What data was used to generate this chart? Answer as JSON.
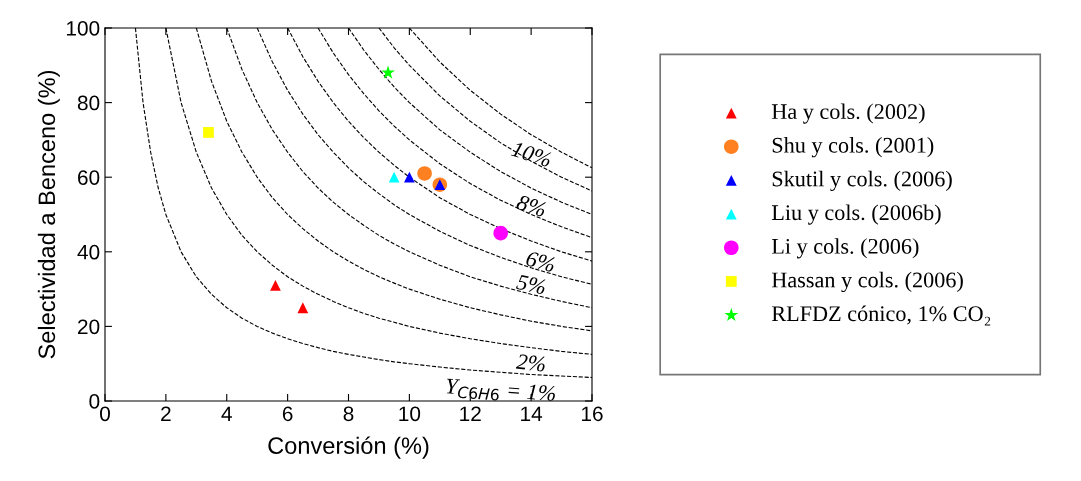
{
  "chart_data": {
    "type": "scatter",
    "xlabel": "Conversión (%)",
    "ylabel": "Selectividad a Benceno (%)",
    "xlim": [
      0,
      16
    ],
    "ylim": [
      0,
      100
    ],
    "xticks": [
      0,
      2,
      4,
      6,
      8,
      10,
      12,
      14,
      16
    ],
    "yticks": [
      0,
      20,
      40,
      60,
      80,
      100
    ],
    "grid": false,
    "legend": "right",
    "series": [
      {
        "name": "Ha y cols. (2002)",
        "color": "#ff0000",
        "marker": "triangle",
        "x": [
          5.6,
          6.5
        ],
        "values": [
          31,
          25
        ]
      },
      {
        "name": "Shu y cols. (2001)",
        "color": "#ff8020",
        "marker": "circle",
        "x": [
          10.5,
          11
        ],
        "values": [
          61,
          58
        ]
      },
      {
        "name": "Skutil y cols. (2006)",
        "color": "#0000ff",
        "marker": "triangle",
        "x": [
          10,
          11
        ],
        "values": [
          60,
          58
        ]
      },
      {
        "name": "Liu y cols. (2006b)",
        "color": "#00ffff",
        "marker": "triangle",
        "x": [
          9.5
        ],
        "values": [
          60
        ]
      },
      {
        "name": "Li y cols. (2006)",
        "color": "#ff00ff",
        "marker": "circle",
        "x": [
          13
        ],
        "values": [
          45
        ]
      },
      {
        "name": "Hassan y cols. (2006)",
        "color": "#ffff00",
        "marker": "square",
        "x": [
          3.4
        ],
        "values": [
          72
        ]
      },
      {
        "name": "RLFDZ cónico, 1% CO₂",
        "color": "#00ff00",
        "marker": "star",
        "x": [
          9.3
        ],
        "values": [
          88
        ]
      },
      {
        "type": "line",
        "color": "#000000",
        "line_style": "dashed",
        "marker": "none",
        "x": [
          1,
          1.25,
          1.5,
          1.75,
          2,
          2.5,
          3,
          3.5,
          4,
          4.5,
          5,
          5.5,
          6,
          6.5,
          7,
          7.5,
          8,
          8.5,
          9,
          9.5,
          10,
          11,
          12,
          13,
          14,
          15,
          16
        ],
        "values": [
          100,
          80,
          66.7,
          57.1,
          50,
          40,
          33.3,
          28.6,
          25,
          22.2,
          20,
          18.2,
          16.7,
          15.4,
          14.3,
          13.3,
          12.5,
          11.8,
          11.1,
          10.5,
          10,
          9.1,
          8.3,
          7.7,
          7.1,
          6.7,
          6.3
        ]
      },
      {
        "type": "line",
        "color": "#000000",
        "line_style": "dashed",
        "marker": "none",
        "x": [
          2,
          2.5,
          3,
          3.5,
          4,
          4.5,
          5,
          5.5,
          6,
          6.5,
          7,
          7.5,
          8,
          8.5,
          9,
          9.5,
          10,
          11,
          12,
          13,
          14,
          15,
          16
        ],
        "values": [
          100,
          80,
          66.7,
          57.1,
          50,
          44.4,
          40,
          36.4,
          33.3,
          30.8,
          28.6,
          26.7,
          25,
          23.5,
          22.2,
          21.1,
          20,
          18.2,
          16.7,
          15.4,
          14.3,
          13.3,
          12.5
        ]
      },
      {
        "type": "line",
        "color": "#000000",
        "line_style": "dashed",
        "marker": "none",
        "x": [
          3,
          3.5,
          4,
          4.5,
          5,
          5.5,
          6,
          6.5,
          7,
          7.5,
          8,
          8.5,
          9,
          9.5,
          10,
          11,
          12,
          13,
          14,
          15,
          16
        ],
        "values": [
          100,
          85.7,
          75,
          66.7,
          60,
          54.5,
          50,
          46.2,
          42.9,
          40,
          37.5,
          35.3,
          33.3,
          31.6,
          30,
          27.3,
          25,
          23.1,
          21.4,
          20,
          18.8
        ]
      },
      {
        "type": "line",
        "color": "#000000",
        "line_style": "dashed",
        "marker": "none",
        "x": [
          4,
          4.5,
          5,
          5.5,
          6,
          6.5,
          7,
          7.5,
          8,
          8.5,
          9,
          9.5,
          10,
          11,
          12,
          13,
          14,
          15,
          16
        ],
        "values": [
          100,
          88.9,
          80,
          72.7,
          66.7,
          61.5,
          57.1,
          53.3,
          50,
          47.1,
          44.4,
          42.1,
          40,
          36.4,
          33.3,
          30.8,
          28.6,
          26.7,
          25
        ]
      },
      {
        "type": "line",
        "color": "#000000",
        "line_style": "dashed",
        "marker": "none",
        "x": [
          5,
          5.5,
          6,
          6.5,
          7,
          7.5,
          8,
          8.5,
          9,
          9.5,
          10,
          11,
          12,
          13,
          14,
          15,
          16
        ],
        "values": [
          100,
          90.9,
          83.3,
          76.9,
          71.4,
          66.7,
          62.5,
          58.8,
          55.6,
          52.6,
          50,
          45.5,
          41.7,
          38.5,
          35.7,
          33.3,
          31.3
        ]
      },
      {
        "type": "line",
        "color": "#000000",
        "line_style": "dashed",
        "marker": "none",
        "x": [
          6,
          6.5,
          7,
          7.5,
          8,
          8.5,
          9,
          9.5,
          10,
          11,
          12,
          13,
          14,
          15,
          16
        ],
        "values": [
          100,
          92.3,
          85.7,
          80,
          75,
          70.6,
          66.7,
          63.2,
          60,
          54.5,
          50,
          46.2,
          42.9,
          40,
          37.5
        ]
      },
      {
        "type": "line",
        "color": "#000000",
        "line_style": "dashed",
        "marker": "none",
        "x": [
          7,
          7.5,
          8,
          8.5,
          9,
          9.5,
          10,
          11,
          12,
          13,
          14,
          15,
          16
        ],
        "values": [
          100,
          93.3,
          87.5,
          82.4,
          77.8,
          73.7,
          70,
          63.6,
          58.3,
          53.8,
          50,
          46.7,
          43.8
        ]
      },
      {
        "type": "line",
        "color": "#000000",
        "line_style": "dashed",
        "marker": "none",
        "x": [
          8,
          8.5,
          9,
          9.5,
          10,
          11,
          12,
          13,
          14,
          15,
          16
        ],
        "values": [
          100,
          94.1,
          88.9,
          84.2,
          80,
          72.7,
          66.7,
          61.5,
          57.1,
          53.3,
          50
        ]
      },
      {
        "type": "line",
        "color": "#000000",
        "line_style": "dashed",
        "marker": "none",
        "x": [
          9,
          9.5,
          10,
          11,
          12,
          13,
          14,
          15,
          16
        ],
        "values": [
          100,
          94.7,
          90,
          81.8,
          75,
          69.2,
          64.3,
          60,
          56.3
        ]
      },
      {
        "type": "line",
        "color": "#000000",
        "line_style": "dashed",
        "marker": "none",
        "x": [
          10,
          11,
          12,
          13,
          14,
          15,
          16
        ],
        "values": [
          100,
          90.9,
          83.3,
          76.9,
          71.4,
          66.7,
          62.5
        ]
      }
    ],
    "annotations": [
      {
        "text": "10%",
        "x": 14,
        "y": 71.4
      },
      {
        "text": "8%",
        "x": 14,
        "y": 57.1
      },
      {
        "text": "6%",
        "x": 14.3,
        "y": 42
      },
      {
        "text": "5%",
        "x": 14,
        "y": 35.7
      },
      {
        "text": "2%",
        "x": 14,
        "y": 14.3
      },
      {
        "text": "Y$_{C6H6}$ = 1%",
        "x": 13,
        "y": 7.7
      }
    ]
  }
}
